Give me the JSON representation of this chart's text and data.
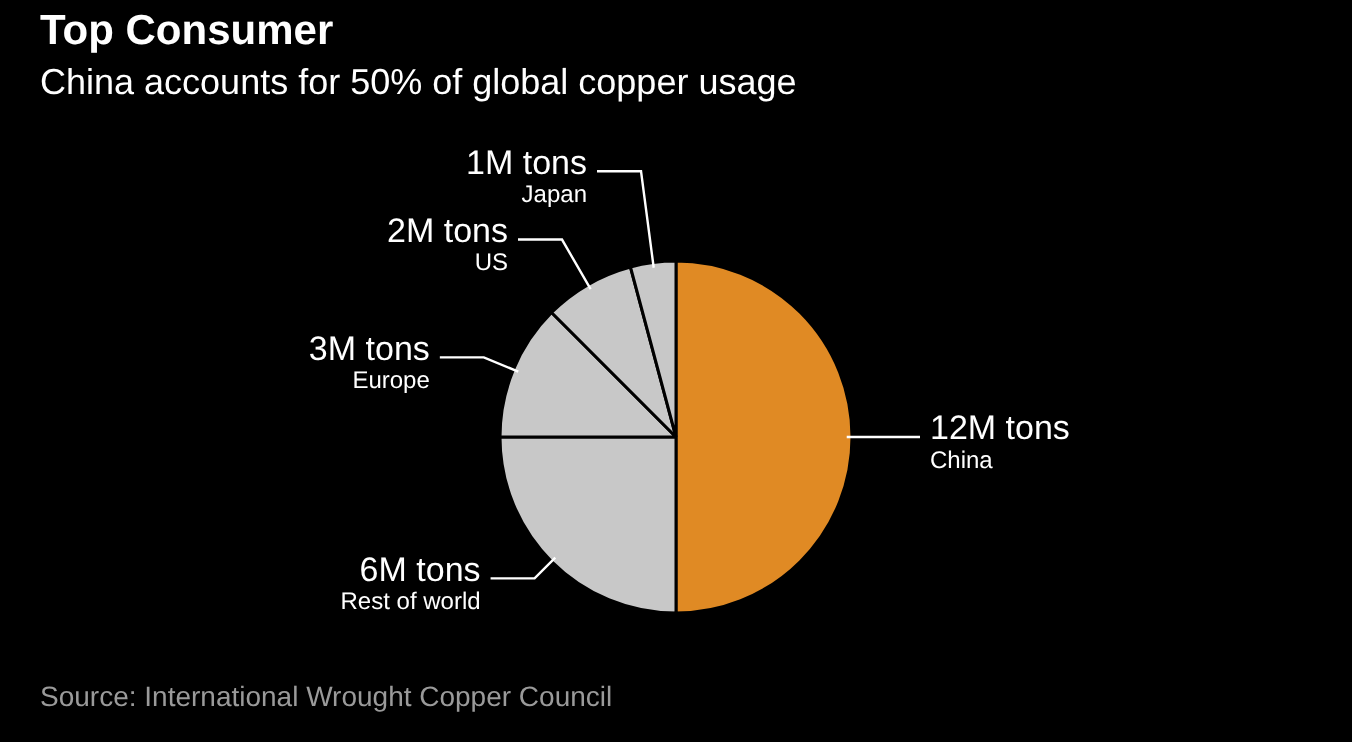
{
  "chart_data": {
    "type": "pie",
    "title": "Top Consumer",
    "subtitle": "China accounts for 50% of global copper usage",
    "categories": [
      "China",
      "Rest of world",
      "Europe",
      "US",
      "Japan"
    ],
    "values": [
      12,
      6,
      3,
      2,
      1
    ],
    "value_labels": [
      "12M tons",
      "6M tons",
      "3M tons",
      "2M tons",
      "1M tons"
    ],
    "colors": [
      "#e08a24",
      "#c8c8c8",
      "#c8c8c8",
      "#c8c8c8",
      "#c8c8c8"
    ],
    "annotations": [
      "Source: International Wrought Copper Council"
    ]
  }
}
